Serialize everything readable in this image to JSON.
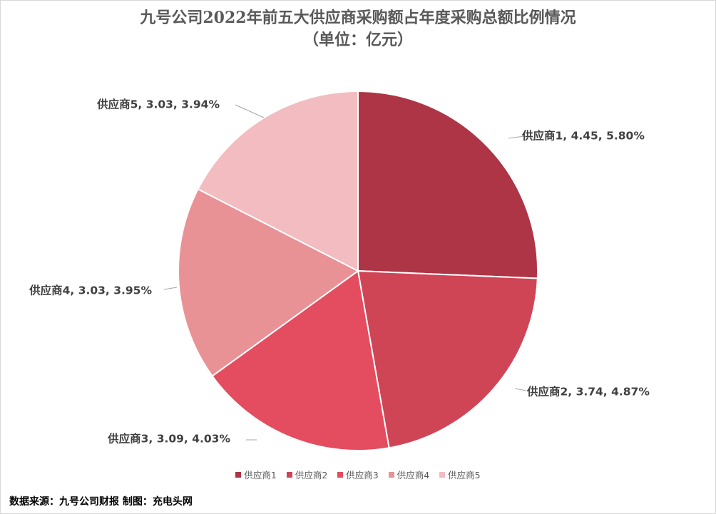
{
  "chart_data": {
    "type": "pie",
    "title": "九号公司2022年前五大供应商采购额占年度采购总额比例情况",
    "subtitle": "（单位：亿元）",
    "categories": [
      "供应商1",
      "供应商2",
      "供应商3",
      "供应商4",
      "供应商5"
    ],
    "values": [
      4.45,
      3.74,
      3.09,
      3.03,
      3.03
    ],
    "percentages": [
      "5.80%",
      "4.87%",
      "4.03%",
      "3.95%",
      "3.94%"
    ],
    "data_labels": [
      "供应商1, 4.45, 5.80%",
      "供应商2, 3.74, 4.87%",
      "供应商3, 3.09, 4.03%",
      "供应商4, 3.03, 3.95%",
      "供应商5, 3.03, 3.94%"
    ],
    "colors": [
      "#ad3545",
      "#cf4556",
      "#e44c5f",
      "#e99296",
      "#f2bcc1"
    ],
    "legend": "bottom",
    "start_angle": "12 o'clock, clockwise"
  },
  "footer": {
    "source": "数据来源：九号公司财报  制图：充电头网"
  }
}
